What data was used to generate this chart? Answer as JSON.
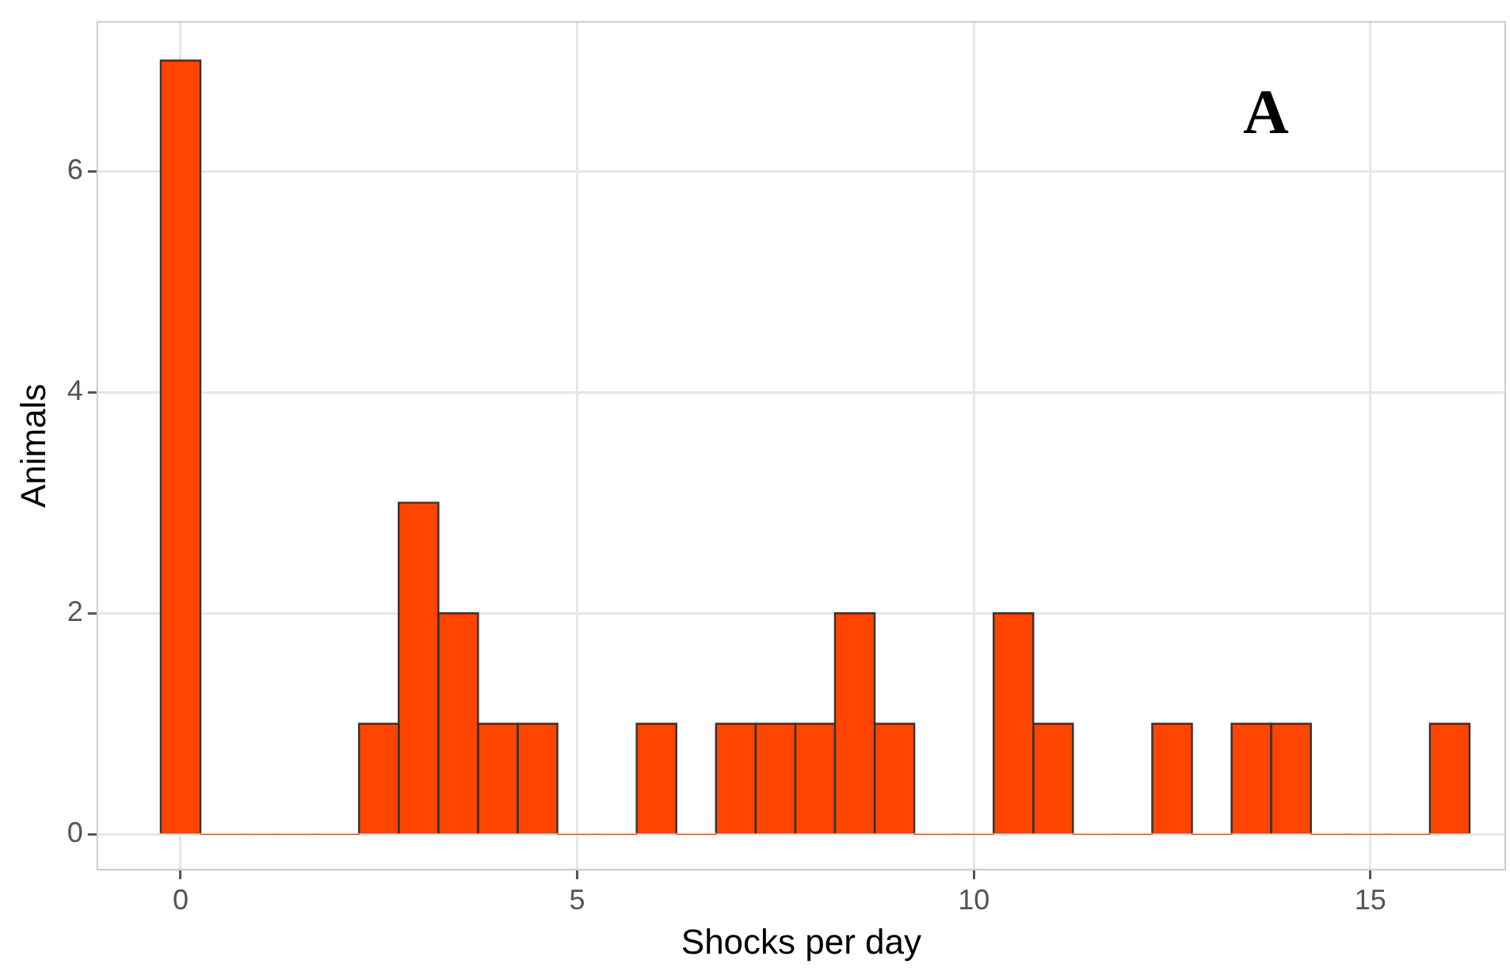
{
  "chart_data": {
    "type": "histogram",
    "xlabel": "Shocks per day",
    "ylabel": "Animals",
    "annotations": [
      "A"
    ],
    "bins": [
      -0.25,
      0.25,
      0.75,
      1.25,
      1.75,
      2.25,
      2.75,
      3.25,
      3.75,
      4.25,
      4.75,
      5.25,
      5.75,
      6.25,
      6.75,
      7.25,
      7.75,
      8.25,
      8.75,
      9.25,
      9.75,
      10.25,
      10.75,
      11.25,
      11.75,
      12.25,
      12.75,
      13.25,
      13.75,
      14.25,
      14.75,
      15.25,
      15.75,
      16.25
    ],
    "values": [
      7,
      0,
      0,
      0,
      0,
      1,
      3,
      2,
      1,
      1,
      0,
      0,
      1,
      0,
      1,
      1,
      1,
      2,
      1,
      0,
      0,
      2,
      1,
      0,
      0,
      1,
      0,
      1,
      1,
      0,
      0,
      0,
      1
    ],
    "color": "#ff4500",
    "xlim": [
      -1.05,
      16.7
    ],
    "ylim": [
      -0.32,
      7.35
    ],
    "xticks": [
      0,
      5,
      10,
      15
    ],
    "yticks": [
      0,
      2,
      4,
      6
    ],
    "grid": true
  }
}
